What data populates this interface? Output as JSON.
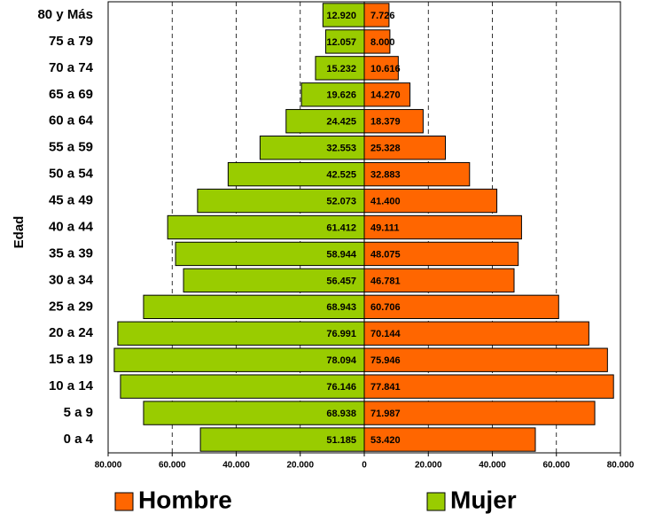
{
  "chart_data": {
    "type": "pyramid",
    "y_label": "Edad",
    "categories": [
      "80 y Más",
      "75 a 79",
      "70 a 74",
      "65 a 69",
      "60 a 64",
      "55 a 59",
      "50 a 54",
      "45 a 49",
      "40 a 44",
      "35 a 39",
      "30 a 34",
      "25 a 29",
      "20 a 24",
      "15 a 19",
      "10 a 14",
      "5 a 9",
      "0 a 4"
    ],
    "series": [
      {
        "name": "Hombre",
        "color": "#ff6600",
        "values": [
          7726,
          8000,
          10616,
          14270,
          18379,
          25328,
          32883,
          41400,
          49111,
          48075,
          46781,
          60706,
          70144,
          75946,
          77841,
          71987,
          53420
        ],
        "value_labels": [
          "7.726",
          "8.000",
          "10.616",
          "14.270",
          "18.379",
          "25.328",
          "32.883",
          "41.400",
          "49.111",
          "48.075",
          "46.781",
          "60.706",
          "70.144",
          "75.946",
          "77.841",
          "71.987",
          "53.420"
        ]
      },
      {
        "name": "Mujer",
        "color": "#99cc00",
        "values": [
          12920,
          12057,
          15232,
          19626,
          24425,
          32553,
          42525,
          52073,
          61412,
          58944,
          56457,
          68943,
          76991,
          78094,
          76146,
          68938,
          51185
        ],
        "value_labels": [
          "12.920",
          "12.057",
          "15.232",
          "19.626",
          "24.425",
          "32.553",
          "42.525",
          "52.073",
          "61.412",
          "58.944",
          "56.457",
          "68.943",
          "76.991",
          "78.094",
          "76.146",
          "68.938",
          "51.185"
        ]
      }
    ],
    "xlim": [
      -80000,
      80000
    ],
    "xticks": [
      {
        "value": -80000,
        "label": "80.000"
      },
      {
        "value": -60000,
        "label": "60.000"
      },
      {
        "value": -40000,
        "label": "40.000"
      },
      {
        "value": -20000,
        "label": "20.000"
      },
      0,
      {
        "value": 20000,
        "label": "20.000"
      },
      {
        "value": 40000,
        "label": "40.000"
      },
      {
        "value": 60000,
        "label": "60.000"
      },
      {
        "value": 80000,
        "label": "80.000"
      }
    ],
    "grid": true
  }
}
